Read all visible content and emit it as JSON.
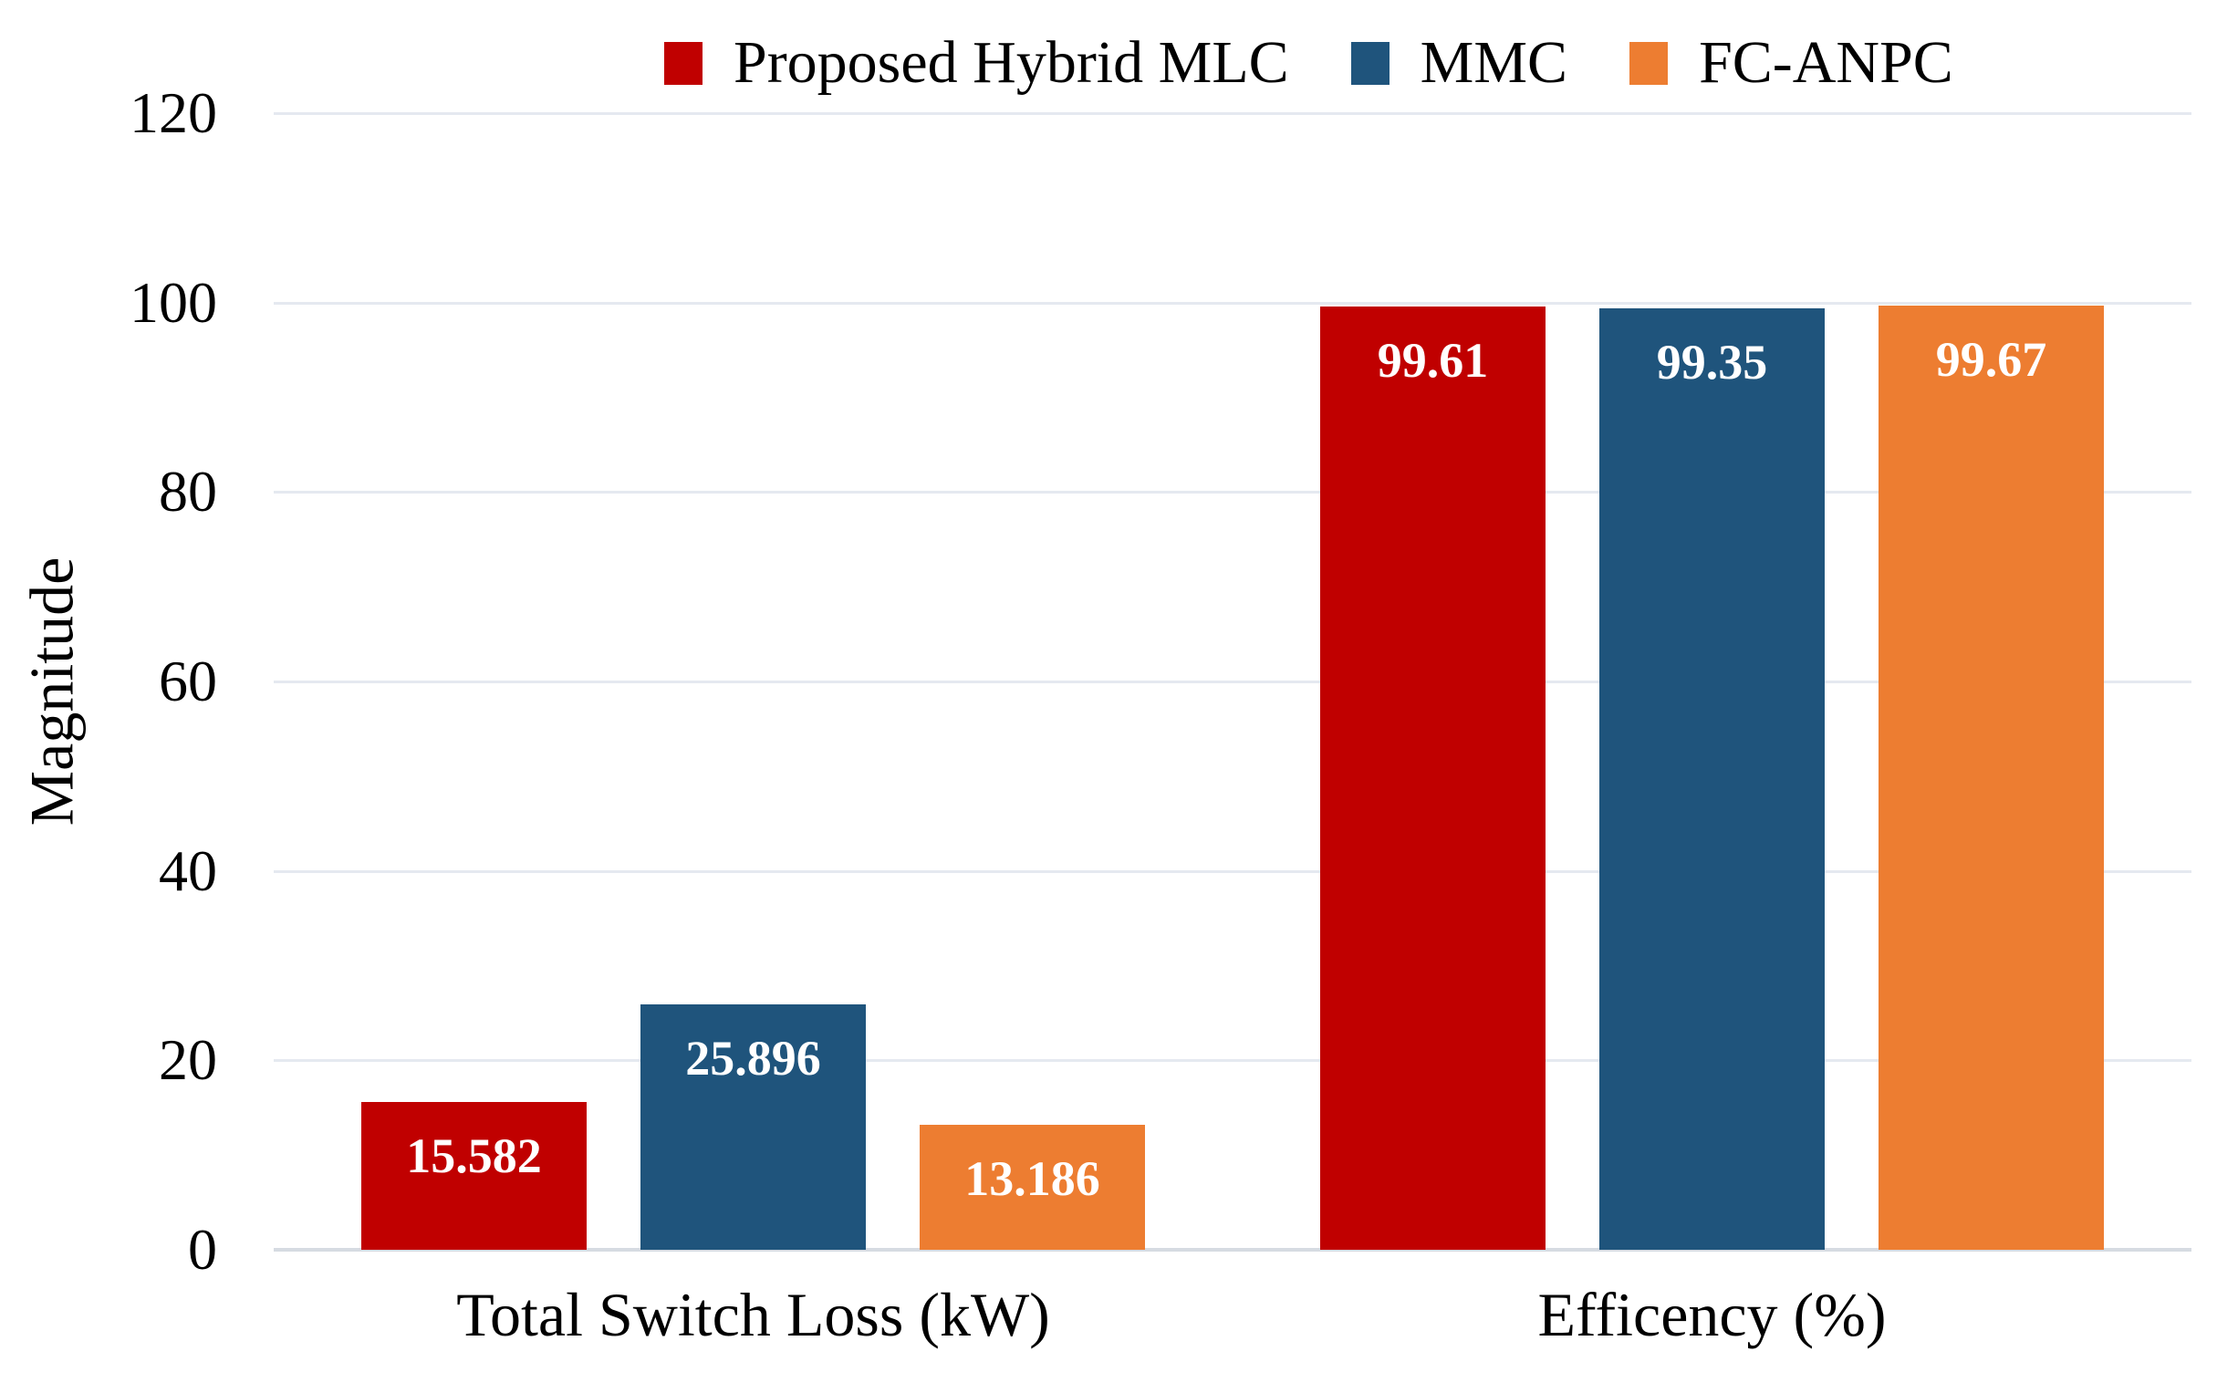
{
  "chart_data": {
    "type": "bar",
    "title": "",
    "ylabel": "Magnitude",
    "xlabel": "",
    "categories": [
      "Total Switch Loss (kW)",
      "Efficency (%)"
    ],
    "series": [
      {
        "name": "Proposed Hybrid MLC",
        "color": "#C00000",
        "values": [
          15.582,
          99.61
        ],
        "value_labels": [
          "15.582",
          "99.61"
        ]
      },
      {
        "name": "MMC",
        "color": "#1F547C",
        "values": [
          25.896,
          99.35
        ],
        "value_labels": [
          "25.896",
          "99.35"
        ]
      },
      {
        "name": "FC-ANPC",
        "color": "#ED7D31",
        "values": [
          13.186,
          99.67
        ],
        "value_labels": [
          "13.186",
          "99.67"
        ]
      }
    ],
    "ylim": [
      0,
      120
    ],
    "yticks": [
      0,
      20,
      40,
      60,
      80,
      100,
      120
    ],
    "grid": true,
    "legend_position": "top",
    "value_label_color": "#FFFFFF",
    "gridline_color": "#E5E9F0",
    "baseline_color": "#D6DBE2",
    "background_color": "#FFFFFF"
  }
}
